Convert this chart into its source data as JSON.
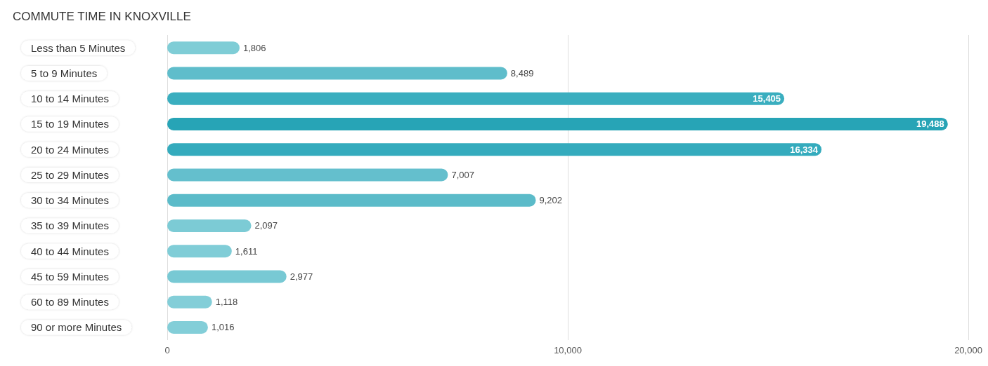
{
  "chart_data": {
    "type": "bar",
    "orientation": "horizontal",
    "title": "COMMUTE TIME IN KNOXVILLE",
    "categories": [
      "Less than 5 Minutes",
      "5 to 9 Minutes",
      "10 to 14 Minutes",
      "15 to 19 Minutes",
      "20 to 24 Minutes",
      "25 to 29 Minutes",
      "30 to 34 Minutes",
      "35 to 39 Minutes",
      "40 to 44 Minutes",
      "45 to 59 Minutes",
      "60 to 89 Minutes",
      "90 or more Minutes"
    ],
    "values": [
      1806,
      8489,
      15405,
      19488,
      16334,
      7007,
      9202,
      2097,
      1611,
      2977,
      1118,
      1016
    ],
    "colors": [
      "#7fcdd6",
      "#5fbdcb",
      "#3aaebf",
      "#27a4b6",
      "#34abbd",
      "#64bfcd",
      "#5bbbc9",
      "#7ccbd5",
      "#80cdd7",
      "#78c9d4",
      "#83ced8",
      "#83ced8"
    ],
    "value_labels": [
      "1,806",
      "8,489",
      "15,405",
      "19,488",
      "16,334",
      "7,007",
      "9,202",
      "2,097",
      "1,611",
      "2,977",
      "1,118",
      "1,016"
    ],
    "xlim": [
      0,
      20000
    ],
    "xticks": [
      0,
      {
        "value": 10000,
        "label": "10,000"
      },
      {
        "value": 20000,
        "label": "20,000"
      }
    ],
    "grid": "x"
  }
}
